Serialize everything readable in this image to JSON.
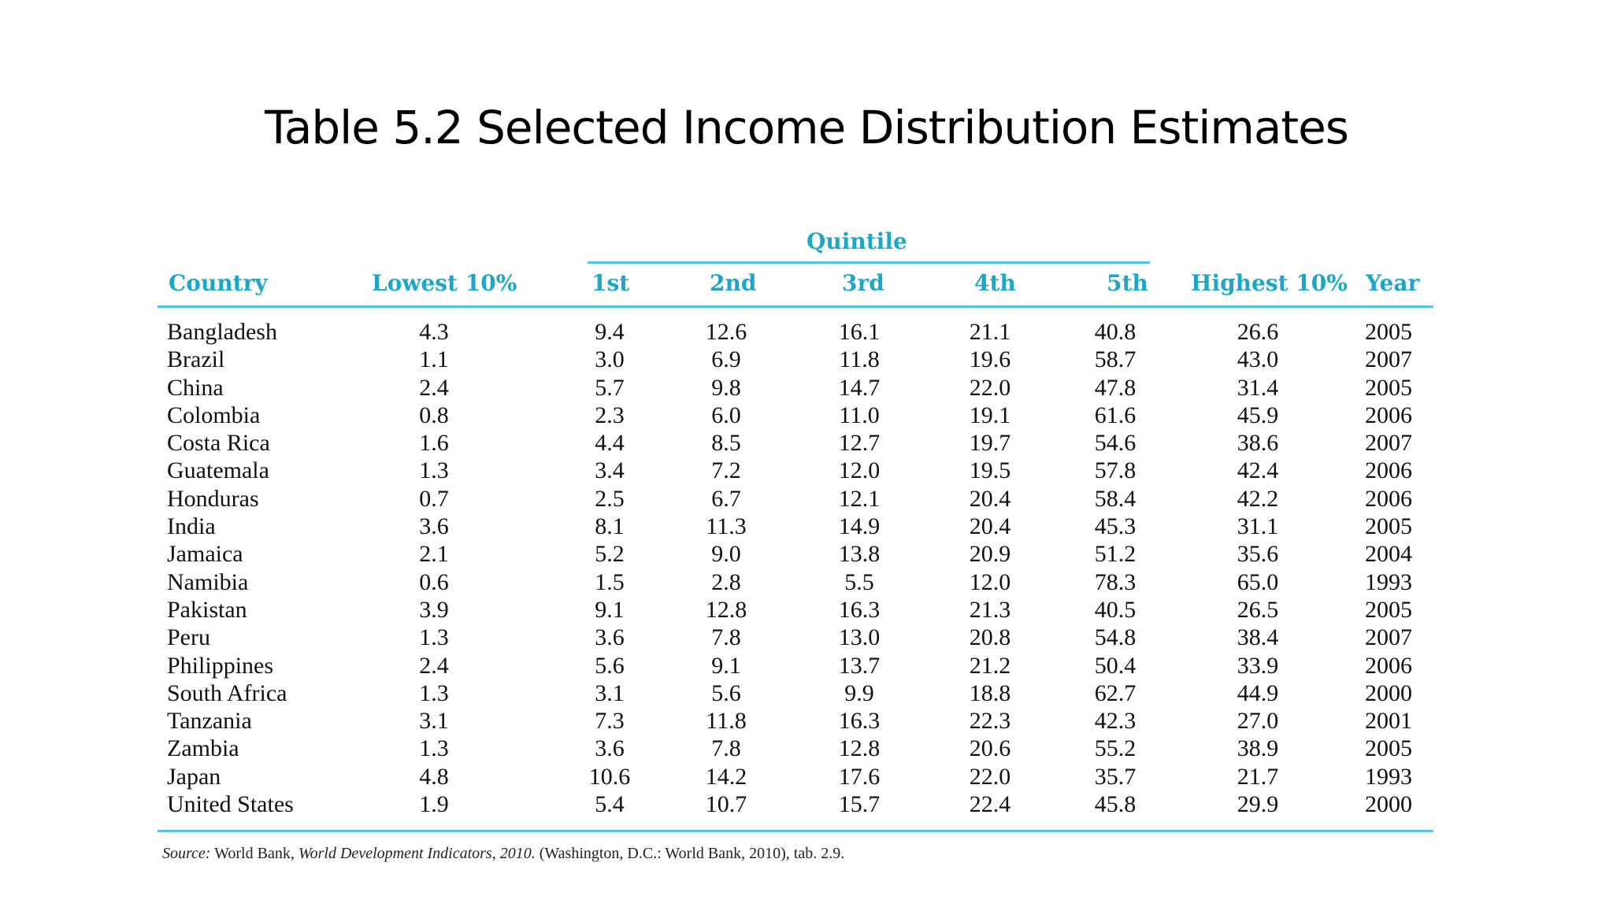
{
  "slide": {
    "title": "Table 5.2  Selected Income Distribution Estimates"
  },
  "table": {
    "group_header": "Quintile",
    "columns": [
      "Country",
      "Lowest 10%",
      "1st",
      "2nd",
      "3rd",
      "4th",
      "5th",
      "Highest 10%",
      "Year"
    ],
    "rows": [
      [
        "Bangladesh",
        "4.3",
        "9.4",
        "12.6",
        "16.1",
        "21.1",
        "40.8",
        "26.6",
        "2005"
      ],
      [
        "Brazil",
        "1.1",
        "3.0",
        "6.9",
        "11.8",
        "19.6",
        "58.7",
        "43.0",
        "2007"
      ],
      [
        "China",
        "2.4",
        "5.7",
        "9.8",
        "14.7",
        "22.0",
        "47.8",
        "31.4",
        "2005"
      ],
      [
        "Colombia",
        "0.8",
        "2.3",
        "6.0",
        "11.0",
        "19.1",
        "61.6",
        "45.9",
        "2006"
      ],
      [
        "Costa Rica",
        "1.6",
        "4.4",
        "8.5",
        "12.7",
        "19.7",
        "54.6",
        "38.6",
        "2007"
      ],
      [
        "Guatemala",
        "1.3",
        "3.4",
        "7.2",
        "12.0",
        "19.5",
        "57.8",
        "42.4",
        "2006"
      ],
      [
        "Honduras",
        "0.7",
        "2.5",
        "6.7",
        "12.1",
        "20.4",
        "58.4",
        "42.2",
        "2006"
      ],
      [
        "India",
        "3.6",
        "8.1",
        "11.3",
        "14.9",
        "20.4",
        "45.3",
        "31.1",
        "2005"
      ],
      [
        "Jamaica",
        "2.1",
        "5.2",
        "9.0",
        "13.8",
        "20.9",
        "51.2",
        "35.6",
        "2004"
      ],
      [
        "Namibia",
        "0.6",
        "1.5",
        "2.8",
        "5.5",
        "12.0",
        "78.3",
        "65.0",
        "1993"
      ],
      [
        "Pakistan",
        "3.9",
        "9.1",
        "12.8",
        "16.3",
        "21.3",
        "40.5",
        "26.5",
        "2005"
      ],
      [
        "Peru",
        "1.3",
        "3.6",
        "7.8",
        "13.0",
        "20.8",
        "54.8",
        "38.4",
        "2007"
      ],
      [
        "Philippines",
        "2.4",
        "5.6",
        "9.1",
        "13.7",
        "21.2",
        "50.4",
        "33.9",
        "2006"
      ],
      [
        "South Africa",
        "1.3",
        "3.1",
        "5.6",
        "9.9",
        "18.8",
        "62.7",
        "44.9",
        "2000"
      ],
      [
        "Tanzania",
        "3.1",
        "7.3",
        "11.8",
        "16.3",
        "22.3",
        "42.3",
        "27.0",
        "2001"
      ],
      [
        "Zambia",
        "1.3",
        "3.6",
        "7.8",
        "12.8",
        "20.6",
        "55.2",
        "38.9",
        "2005"
      ],
      [
        "Japan",
        "4.8",
        "10.6",
        "14.2",
        "17.6",
        "22.0",
        "35.7",
        "21.7",
        "1993"
      ],
      [
        "United States",
        "1.9",
        "5.4",
        "10.7",
        "15.7",
        "22.4",
        "45.8",
        "29.9",
        "2000"
      ]
    ]
  },
  "source": {
    "prefix": "Source:",
    "text_a": " World Bank, ",
    "italic_title": "World Development Indicators, 2010.",
    "text_b": " (Washington, D.C.: World Bank, 2010), tab. 2.9."
  },
  "colors": {
    "header": "#1aa7c9",
    "rule": "#55c4e0"
  }
}
